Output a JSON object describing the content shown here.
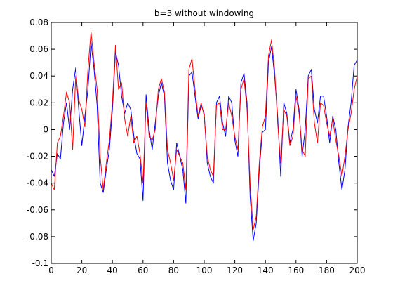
{
  "chart_data": {
    "type": "line",
    "title": "b=3 without windowing",
    "xlabel": "",
    "ylabel": "",
    "xlim": [
      0,
      200
    ],
    "ylim": [
      -0.1,
      0.08
    ],
    "grid": false,
    "legend": "none",
    "xticks": [
      0,
      20,
      40,
      60,
      80,
      100,
      120,
      140,
      160,
      180,
      200
    ],
    "yticks": [
      -0.1,
      -0.08,
      -0.06,
      -0.04,
      -0.02,
      0,
      0.02,
      0.04,
      0.06,
      0.08
    ],
    "xtick_labels": [
      "0",
      "20",
      "40",
      "60",
      "80",
      "100",
      "120",
      "140",
      "160",
      "180",
      "200"
    ],
    "ytick_labels": [
      "-0.1",
      "-0.08",
      "-0.06",
      "-0.04",
      "-0.02",
      "0",
      "0.02",
      "0.04",
      "0.06",
      "0.08"
    ],
    "series": [
      {
        "color": "#0000ff",
        "x": [
          0,
          2,
          4,
          6,
          8,
          10,
          12,
          14,
          16,
          18,
          20,
          22,
          24,
          26,
          28,
          30,
          32,
          34,
          36,
          38,
          40,
          42,
          44,
          46,
          48,
          50,
          52,
          54,
          56,
          58,
          60,
          62,
          64,
          66,
          68,
          70,
          72,
          74,
          76,
          78,
          80,
          82,
          84,
          86,
          88,
          90,
          92,
          94,
          96,
          98,
          100,
          102,
          104,
          106,
          108,
          110,
          112,
          114,
          116,
          118,
          120,
          122,
          124,
          126,
          128,
          130,
          132,
          134,
          136,
          138,
          140,
          142,
          144,
          146,
          148,
          150,
          152,
          154,
          156,
          158,
          160,
          162,
          164,
          166,
          168,
          170,
          172,
          174,
          176,
          178,
          180,
          182,
          184,
          186,
          188,
          190,
          192,
          194,
          196,
          198,
          200
        ],
        "y": [
          -0.03,
          -0.035,
          -0.018,
          -0.022,
          0.005,
          0.02,
          0.0,
          0.03,
          0.046,
          0.015,
          -0.012,
          0.01,
          0.03,
          0.065,
          0.045,
          0.018,
          -0.04,
          -0.047,
          -0.03,
          -0.015,
          0.015,
          0.058,
          0.048,
          0.025,
          0.012,
          0.02,
          0.015,
          -0.005,
          -0.018,
          -0.022,
          -0.053,
          0.026,
          0.0,
          -0.015,
          0.005,
          0.025,
          0.035,
          0.025,
          -0.025,
          -0.038,
          -0.045,
          -0.01,
          -0.02,
          -0.03,
          -0.055,
          0.04,
          0.043,
          0.025,
          0.008,
          0.018,
          0.012,
          -0.025,
          -0.035,
          -0.04,
          0.02,
          0.025,
          0.005,
          -0.005,
          0.025,
          0.02,
          -0.008,
          -0.02,
          0.035,
          0.042,
          0.02,
          -0.05,
          -0.083,
          -0.07,
          -0.03,
          -0.002,
          0.0,
          0.05,
          0.062,
          0.04,
          0.01,
          -0.035,
          0.02,
          0.012,
          -0.01,
          0.0,
          0.03,
          0.015,
          -0.02,
          0.0,
          0.04,
          0.045,
          0.015,
          0.005,
          0.025,
          0.025,
          0.01,
          -0.01,
          0.01,
          0.0,
          -0.025,
          -0.045,
          -0.03,
          0.002,
          0.02,
          0.048,
          0.052
        ]
      },
      {
        "color": "#ff0000",
        "x": [
          0,
          2,
          4,
          6,
          8,
          10,
          12,
          14,
          16,
          18,
          20,
          22,
          24,
          26,
          28,
          30,
          32,
          34,
          36,
          38,
          40,
          42,
          44,
          46,
          48,
          50,
          52,
          54,
          56,
          58,
          60,
          62,
          64,
          66,
          68,
          70,
          72,
          74,
          76,
          78,
          80,
          82,
          84,
          86,
          88,
          90,
          92,
          94,
          96,
          98,
          100,
          102,
          104,
          106,
          108,
          110,
          112,
          114,
          116,
          118,
          120,
          122,
          124,
          126,
          128,
          130,
          132,
          134,
          136,
          138,
          140,
          142,
          144,
          146,
          148,
          150,
          152,
          154,
          156,
          158,
          160,
          162,
          164,
          166,
          168,
          170,
          172,
          174,
          176,
          178,
          180,
          182,
          184,
          186,
          188,
          190,
          192,
          194,
          196,
          198,
          200
        ],
        "y": [
          -0.04,
          -0.045,
          -0.01,
          -0.005,
          0.01,
          0.028,
          0.02,
          -0.015,
          0.04,
          0.022,
          0.015,
          0.002,
          0.045,
          0.073,
          0.05,
          0.03,
          -0.02,
          -0.045,
          -0.025,
          -0.008,
          0.02,
          0.063,
          0.03,
          0.035,
          0.008,
          -0.005,
          0.01,
          -0.01,
          -0.005,
          -0.018,
          -0.04,
          0.02,
          -0.005,
          -0.008,
          0.0,
          0.03,
          0.038,
          0.028,
          -0.015,
          -0.025,
          -0.038,
          -0.015,
          -0.02,
          -0.025,
          -0.045,
          0.045,
          0.053,
          0.03,
          0.01,
          0.02,
          0.01,
          -0.02,
          -0.03,
          -0.035,
          0.018,
          0.02,
          0.0,
          0.0,
          0.02,
          0.01,
          -0.005,
          -0.015,
          0.03,
          0.038,
          0.015,
          -0.04,
          -0.075,
          -0.065,
          -0.025,
          0.002,
          0.01,
          0.055,
          0.067,
          0.045,
          0.005,
          -0.025,
          0.015,
          0.01,
          -0.012,
          -0.005,
          0.025,
          0.012,
          -0.015,
          -0.02,
          0.038,
          0.04,
          0.005,
          -0.01,
          0.02,
          0.018,
          0.005,
          -0.005,
          0.008,
          -0.008,
          -0.02,
          -0.035,
          -0.02,
          0.0,
          0.012,
          0.03,
          0.04
        ]
      }
    ]
  }
}
